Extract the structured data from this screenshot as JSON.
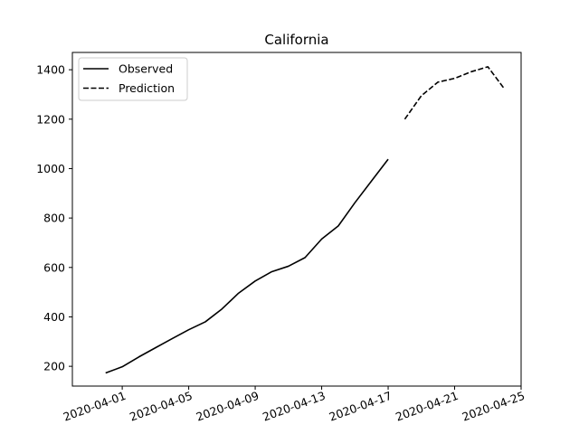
{
  "chart_data": {
    "type": "line",
    "title": "California",
    "xlabel": "",
    "ylabel": "",
    "xlim": [
      "2020-03-29",
      "2020-04-25"
    ],
    "ylim": [
      120,
      1470
    ],
    "x_ticks": [
      "2020-04-01",
      "2020-04-05",
      "2020-04-09",
      "2020-04-13",
      "2020-04-17",
      "2020-04-21",
      "2020-04-25"
    ],
    "y_ticks": [
      200,
      400,
      600,
      800,
      1000,
      1200,
      1400
    ],
    "grid": false,
    "legend": "top-left",
    "series": [
      {
        "name": "Observed",
        "style": "solid",
        "color": "#000000",
        "points": [
          [
            "2020-03-31",
            173
          ],
          [
            "2020-04-01",
            198
          ],
          [
            "2020-04-02",
            238
          ],
          [
            "2020-04-03",
            275
          ],
          [
            "2020-04-04",
            312
          ],
          [
            "2020-04-05",
            348
          ],
          [
            "2020-04-06",
            380
          ],
          [
            "2020-04-07",
            432
          ],
          [
            "2020-04-08",
            496
          ],
          [
            "2020-04-09",
            545
          ],
          [
            "2020-04-10",
            583
          ],
          [
            "2020-04-11",
            605
          ],
          [
            "2020-04-12",
            640
          ],
          [
            "2020-04-13",
            715
          ],
          [
            "2020-04-14",
            768
          ],
          [
            "2020-04-15",
            862
          ],
          [
            "2020-04-16",
            950
          ],
          [
            "2020-04-17",
            1038
          ]
        ]
      },
      {
        "name": "Prediction",
        "style": "dashed",
        "color": "#000000",
        "points": [
          [
            "2020-04-18",
            1200
          ],
          [
            "2020-04-19",
            1295
          ],
          [
            "2020-04-20",
            1350
          ],
          [
            "2020-04-21",
            1365
          ],
          [
            "2020-04-22",
            1392
          ],
          [
            "2020-04-23",
            1412
          ],
          [
            "2020-04-24",
            1322
          ]
        ]
      }
    ]
  }
}
